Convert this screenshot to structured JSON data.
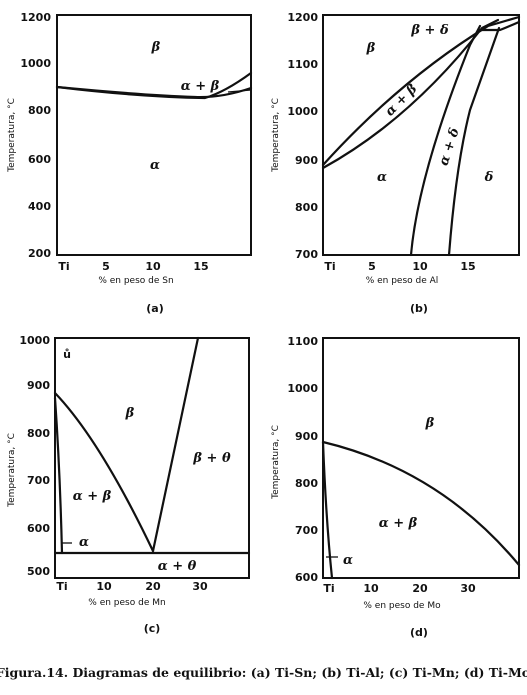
{
  "caption": "Figura.14. Diagramas de equilibrio: (a) Ti-Sn; (b) Ti-Al; (c) Ti-Mn; (d) Ti-Mo",
  "panels": [
    {
      "id": "a",
      "sublabel": "(a)",
      "ylabel": "Temperatura, °C",
      "xlabel": "% en peso de Sn",
      "yticks": [
        "1200",
        "1000",
        "800",
        "600",
        "400",
        "200"
      ],
      "xticks": [
        "Ti",
        "5",
        "10",
        "15"
      ],
      "regions": [
        "β",
        "α + β",
        "α"
      ]
    },
    {
      "id": "b",
      "sublabel": "(b)",
      "ylabel": "Temperatura, °C",
      "xlabel": "% en peso de Al",
      "yticks": [
        "1200",
        "1100",
        "1000",
        "900",
        "800",
        "700"
      ],
      "xticks": [
        "Ti",
        "5",
        "10",
        "15"
      ],
      "regions": [
        "β + δ",
        "β",
        "α + β",
        "α + δ",
        "α",
        "δ"
      ]
    },
    {
      "id": "c",
      "sublabel": "(c)",
      "ylabel": "Temperatura, °C",
      "xlabel": "% en peso de Mn",
      "yticks": [
        "1000",
        "900",
        "800",
        "700",
        "600",
        "500"
      ],
      "xticks": [
        "Ti",
        "10",
        "20",
        "30"
      ],
      "regions": [
        "β",
        "β + θ",
        "α + β",
        "α",
        "α + θ"
      ]
    },
    {
      "id": "d",
      "sublabel": "(d)",
      "ylabel": "Temperatura, °C",
      "xlabel": "% en peso de Mo",
      "yticks": [
        "1100",
        "1000",
        "900",
        "800",
        "700",
        "600"
      ],
      "xticks": [
        "Ti",
        "10",
        "20",
        "30"
      ],
      "regions": [
        "β",
        "α + β",
        "α"
      ]
    }
  ]
}
